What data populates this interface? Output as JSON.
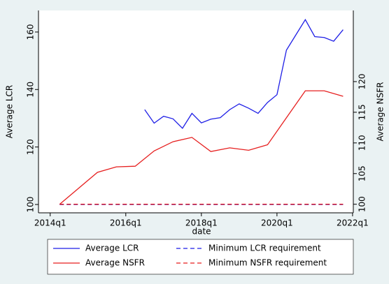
{
  "chart_data": {
    "type": "line",
    "xlabel": "date",
    "ylabel": "Average LCR",
    "y2label": "Average NSFR",
    "xlim": [
      2013.69,
      2022.02
    ],
    "xticks": [
      {
        "value": 2014,
        "label": "2014q1"
      },
      {
        "value": 2016,
        "label": "2016q1"
      },
      {
        "value": 2018,
        "label": "2018q1"
      },
      {
        "value": 2020,
        "label": "2020q1"
      },
      {
        "value": 2022,
        "label": "2022q1"
      }
    ],
    "ylim": [
      97.1,
      167.5
    ],
    "yticks": [
      100,
      120,
      140,
      160
    ],
    "y2lim": [
      98.6,
      131.6
    ],
    "y2ticks": [
      100,
      105,
      110,
      115,
      120
    ],
    "grid": false,
    "legend": "bottom",
    "series": [
      {
        "name": "Average LCR",
        "color": "#1f1fe6",
        "dash": false,
        "axis": "y",
        "x": [
          2016.5,
          2016.75,
          2017,
          2017.25,
          2017.5,
          2017.75,
          2018,
          2018.25,
          2018.5,
          2018.75,
          2019,
          2019.25,
          2019.5,
          2019.75,
          2020,
          2020.25,
          2020.5,
          2020.75,
          2021,
          2021.25,
          2021.5,
          2021.75
        ],
        "values": [
          133,
          128.3,
          130.7,
          129.8,
          126.5,
          131.7,
          128.4,
          129.7,
          130.2,
          133,
          135,
          133.5,
          131.7,
          135.5,
          138.2,
          153.7,
          159,
          164.3,
          158.4,
          158.1,
          156.8,
          160.8
        ]
      },
      {
        "name": "Average NSFR",
        "color": "#e61f1f",
        "dash": false,
        "axis": "y2",
        "x": [
          2014.25,
          2014.75,
          2015.25,
          2015.75,
          2016.25,
          2016.75,
          2017.25,
          2017.75,
          2018.25,
          2018.75,
          2019.25,
          2019.75,
          2020.25,
          2020.75,
          2021.25,
          2021.75
        ],
        "values": [
          100,
          102.6,
          105.2,
          106.1,
          106.2,
          108.7,
          110.2,
          110.9,
          108.6,
          109.2,
          108.8,
          109.7,
          114.1,
          118.5,
          118.5,
          117.6
        ]
      },
      {
        "name": "Minimum LCR requirement",
        "color": "#1f1fe6",
        "dash": true,
        "axis": "y",
        "x": [
          2014.25,
          2021.75
        ],
        "values": [
          100,
          100
        ]
      },
      {
        "name": "Minimum NSFR requirement",
        "color": "#e61f1f",
        "dash": true,
        "axis": "y2",
        "x": [
          2014.25,
          2021.75
        ],
        "values": [
          100,
          100
        ]
      }
    ]
  }
}
